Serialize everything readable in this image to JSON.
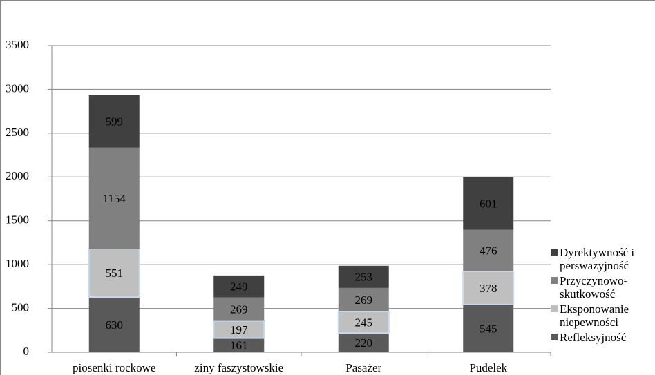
{
  "chart_data": {
    "type": "stacked-bar",
    "categories": [
      "piosenki rockowe",
      "ziny faszystowskie",
      "Pasażer",
      "Pudelek"
    ],
    "series": [
      {
        "name": "Refleksyjność",
        "color": "#595959",
        "values": [
          630,
          161,
          220,
          545
        ]
      },
      {
        "name": "Eksponowanie niepewności",
        "color": "#bfbfbf",
        "values": [
          551,
          197,
          245,
          378
        ]
      },
      {
        "name": "Przyczynowo-skutkowość",
        "color": "#808080",
        "values": [
          1154,
          269,
          269,
          476
        ]
      },
      {
        "name": "Dyrektywność i perswazyjność",
        "color": "#404040",
        "values": [
          599,
          249,
          253,
          601
        ]
      }
    ],
    "ylim": [
      0,
      3500
    ],
    "yticks": [
      0,
      500,
      1000,
      1500,
      2000,
      2500,
      3000,
      3500
    ],
    "grid": true,
    "legend": "right"
  }
}
